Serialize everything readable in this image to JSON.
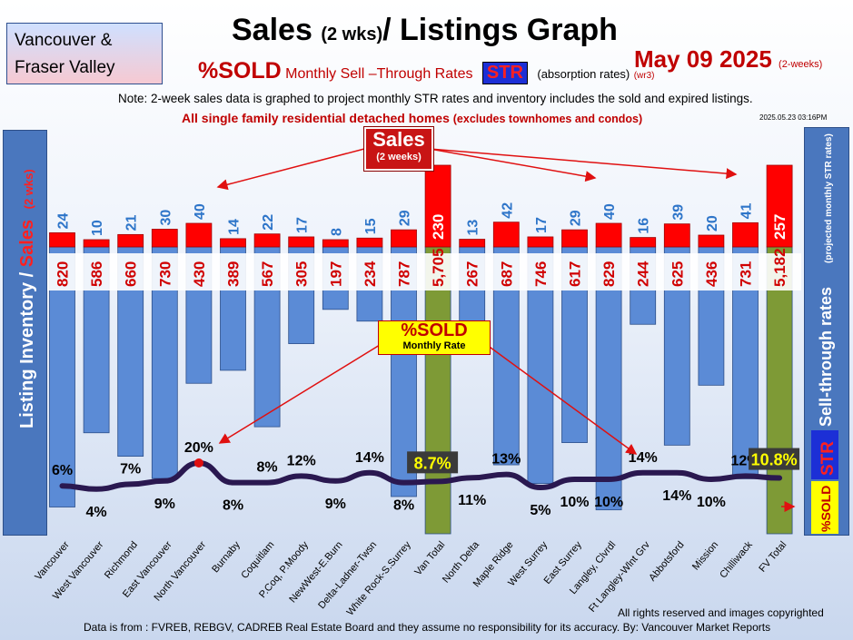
{
  "header": {
    "region_line1": "Vancouver &",
    "region_line2": "Fraser Valley",
    "title": "Sales",
    "title_small": "(2 wks)",
    "title_rest": "/ Listings Graph",
    "date": "May 09 2025",
    "date_small": "(2-weeks)",
    "subtitle_pct": "%SOLD",
    "subtitle_text": "Monthly Sell –Through Rates",
    "str_badge": "STR",
    "absorption": "(absorption rates)",
    "version": "(wr3)",
    "note": "Note: 2-week sales data is graphed to project monthly STR rates and inventory includes the sold and expired listings.",
    "scope": "All single family residential detached homes",
    "scope_small": "(excludes townhomes and condos)",
    "timestamp": "2025.05.23 03:16PM"
  },
  "axis": {
    "left_label_1": "Listing Inventory /",
    "left_label_2": "Sales",
    "left_label_3": "(2 wks)",
    "right_label_1": "Sell-through rates",
    "right_label_2": "(projected monthly STR rates)",
    "right_str": "STR",
    "right_sold": "%SOLD"
  },
  "callouts": {
    "sales_title": "Sales",
    "sales_sub": "(2 weeks)",
    "sold_title": "%SOLD",
    "sold_sub": "Monthly Rate"
  },
  "colors": {
    "inventory_bar": "#5b8bd6",
    "total_bar": "#7e9a36",
    "sales_bar": "#ff0000",
    "sales_label": "#2e75c9",
    "inventory_label": "#d00000",
    "line": "#2a1850"
  },
  "chart_data": {
    "type": "bar",
    "categories": [
      "Vancouver",
      "West Vancouver",
      "Richmond",
      "East Vancouver",
      "North Vancouver",
      "Burnaby",
      "Coquitlam",
      "P.Coq, P.Moody",
      "NewWest-E.Burn",
      "Delta-Ladner-Twsn",
      "White Rock-S.Surrey",
      "Van Total",
      "North Delta",
      "Maple Ridge",
      "West Surrey",
      "East Surrey",
      "Langley, Clvrdl",
      "Ft Langley-Wlnt Grv",
      "Abbotsford",
      "Mission",
      "Chilliwack",
      "FV Total"
    ],
    "series": [
      {
        "name": "Sales (2 weeks)",
        "values": [
          24,
          10,
          21,
          30,
          40,
          14,
          22,
          17,
          8,
          15,
          29,
          230,
          13,
          42,
          17,
          29,
          40,
          16,
          39,
          20,
          41,
          257
        ]
      },
      {
        "name": "Listing Inventory",
        "values": [
          820,
          586,
          660,
          730,
          430,
          389,
          567,
          305,
          197,
          234,
          787,
          5705,
          267,
          687,
          746,
          617,
          829,
          244,
          625,
          436,
          731,
          5182
        ]
      },
      {
        "name": "%SOLD Monthly Rate",
        "values": [
          6,
          4,
          7,
          9,
          20,
          8,
          8,
          12,
          9,
          14,
          8,
          8.7,
          11,
          13,
          5,
          10,
          10,
          14,
          14,
          10,
          12,
          10.8
        ]
      }
    ],
    "sales_labels": [
      "24",
      "10",
      "21",
      "30",
      "40",
      "14",
      "22",
      "17",
      "8",
      "15",
      "29",
      "230",
      "13",
      "42",
      "17",
      "29",
      "40",
      "16",
      "39",
      "20",
      "41",
      "257"
    ],
    "inventory_labels": [
      "820",
      "586",
      "660",
      "730",
      "430",
      "389",
      "567",
      "305",
      "197",
      "234",
      "787",
      "5,705",
      "267",
      "687",
      "746",
      "617",
      "829",
      "244",
      "625",
      "436",
      "731",
      "5,182"
    ],
    "rate_labels": [
      "6%",
      "4%",
      "7%",
      "9%",
      "20%",
      "8%",
      "8%",
      "12%",
      "9%",
      "14%",
      "8%",
      "8.7%",
      "11%",
      "13%",
      "5%",
      "10%",
      "10%",
      "14%",
      "14%",
      "10%",
      "12%",
      "10.8%"
    ],
    "totals": [
      "Van Total",
      "FV Total"
    ]
  },
  "footer": {
    "rights": "All rights reserved and  images copyrighted",
    "source": "Data is from : FVREB, REBGV, CADREB Real Estate Board and they assume no responsibility for its accuracy. By: Vancouver Market Reports"
  }
}
